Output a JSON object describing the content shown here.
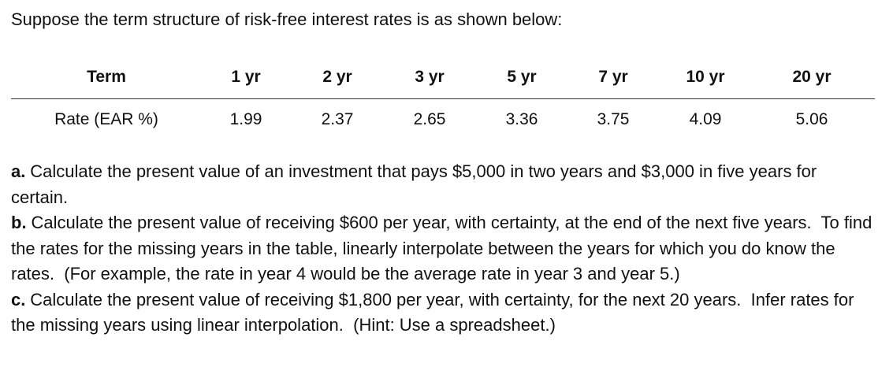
{
  "intro": "Suppose the term structure of risk-free interest rates is as shown below:",
  "table": {
    "header": [
      "Term",
      "1 yr",
      "2 yr",
      "3 yr",
      "5 yr",
      "7 yr",
      "10 yr",
      "20 yr"
    ],
    "rows": [
      [
        "Rate (EAR %)",
        "1.99",
        "2.37",
        "2.65",
        "3.36",
        "3.75",
        "4.09",
        "5.06"
      ]
    ]
  },
  "questions": [
    {
      "label": "a.",
      "text": "Calculate the present value of an investment that pays $5,000 in two years and $3,000 in five years for certain."
    },
    {
      "label": "b.",
      "text": "Calculate the present value of receiving $600 per year, with certainty, at the end of the next five years.  To find the rates for the missing years in the table, linearly interpolate between the years for which you do know the rates.  (For example, the rate in year 4 would be the average rate in year 3 and year 5.)"
    },
    {
      "label": "c.",
      "text": "Calculate the present value of receiving $1,800 per year, with certainty, for the next 20 years.  Infer rates for the missing years using linear interpolation.  (Hint: Use a spreadsheet.)"
    }
  ]
}
